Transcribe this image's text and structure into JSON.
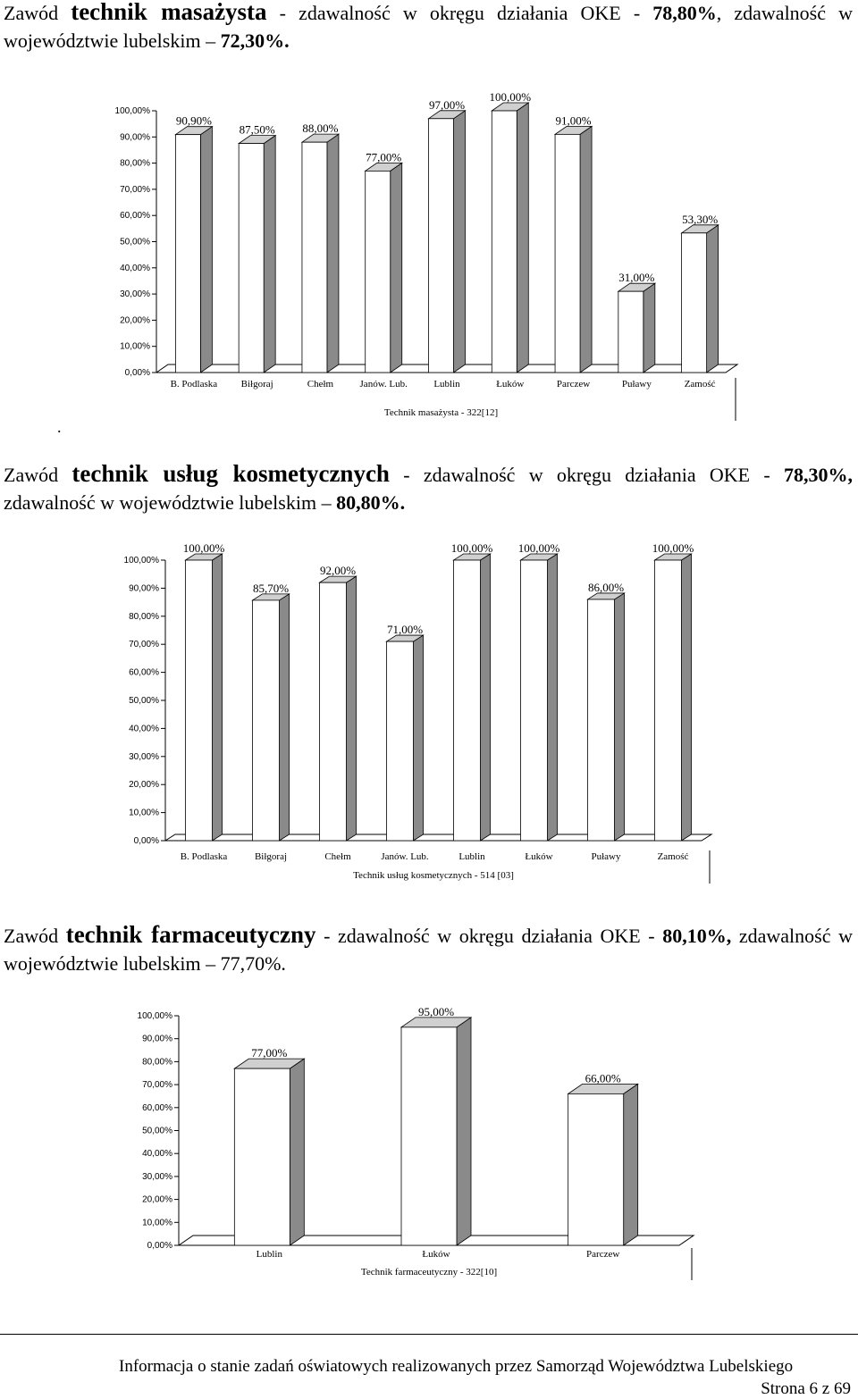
{
  "sections": [
    {
      "heading": [
        {
          "text": "Zawód ",
          "style": "plain"
        },
        {
          "text": "technik masażysta",
          "style": "profession"
        },
        {
          "text": " - zdawalność w okręgu działania OKE - ",
          "style": "plain"
        },
        {
          "text": "78,80%",
          "style": "bold"
        },
        {
          "text": ", zdawalność w województwie lubelskim – ",
          "style": "plain"
        },
        {
          "text": "72,30%.",
          "style": "bold"
        }
      ],
      "note": ".",
      "chart": {
        "type": "bar3d",
        "xlabel": "Technik masażysta - 322[12]",
        "categories": [
          "B. Podlaska",
          "Biłgoraj",
          "Chełm",
          "Janów. Lub.",
          "Lublin",
          "Łuków",
          "Parczew",
          "Puławy",
          "Zamość"
        ],
        "values": [
          90.9,
          87.5,
          88,
          77,
          97,
          100,
          91,
          31,
          53.3
        ],
        "value_labels": [
          "90,90%",
          "87,50%",
          "88,00%",
          "77,00%",
          "97,00%",
          "100,00%",
          "91,00%",
          "31,00%",
          "53,30%"
        ],
        "ylim": [
          0,
          100
        ],
        "yticks": [
          {
            "value": 0,
            "label": "0,00%"
          },
          {
            "value": 10,
            "label": "10,00%"
          },
          {
            "value": 20,
            "label": "20,00%"
          },
          {
            "value": 30,
            "label": "30,00%"
          },
          {
            "value": 40,
            "label": "40,00%"
          },
          {
            "value": 50,
            "label": "50,00%"
          },
          {
            "value": 60,
            "label": "60,00%"
          },
          {
            "value": 70,
            "label": "70,00%"
          },
          {
            "value": 80,
            "label": "80,00%"
          },
          {
            "value": 90,
            "label": "90,00%"
          },
          {
            "value": 100,
            "label": "100,00%"
          }
        ]
      }
    },
    {
      "heading": [
        {
          "text": "Zawód ",
          "style": "plain"
        },
        {
          "text": "technik usług kosmetycznych",
          "style": "profession"
        },
        {
          "text": " - zdawalność w okręgu działania OKE - ",
          "style": "plain"
        },
        {
          "text": "78,30%,",
          "style": "bold"
        },
        {
          "text": " zdawalność w województwie lubelskim – ",
          "style": "plain"
        },
        {
          "text": "80,80%.",
          "style": "bold"
        }
      ],
      "chart": {
        "type": "bar3d",
        "xlabel": "Technik usług kosmetycznych - 514 [03]",
        "categories": [
          "B. Podlaska",
          "Biłgoraj",
          "Chełm",
          "Janów. Lub.",
          "Lublin",
          "Łuków",
          "Puławy",
          "Zamość"
        ],
        "values": [
          100,
          85.7,
          92,
          71,
          100,
          100,
          86,
          100
        ],
        "value_labels": [
          "100,00%",
          "85,70%",
          "92,00%",
          "71,00%",
          "100,00%",
          "100,00%",
          "86,00%",
          "100,00%"
        ],
        "ylim": [
          0,
          100
        ],
        "yticks": [
          {
            "value": 0,
            "label": "0,00%"
          },
          {
            "value": 10,
            "label": "10,00%"
          },
          {
            "value": 20,
            "label": "20,00%"
          },
          {
            "value": 30,
            "label": "30,00%"
          },
          {
            "value": 40,
            "label": "40,00%"
          },
          {
            "value": 50,
            "label": "50,00%"
          },
          {
            "value": 60,
            "label": "60,00%"
          },
          {
            "value": 70,
            "label": "70,00%"
          },
          {
            "value": 80,
            "label": "80,00%"
          },
          {
            "value": 90,
            "label": "90,00%"
          },
          {
            "value": 100,
            "label": "100,00%"
          }
        ]
      }
    },
    {
      "heading": [
        {
          "text": "Zawód ",
          "style": "plain"
        },
        {
          "text": "technik farmaceutyczny",
          "style": "profession"
        },
        {
          "text": " - zdawalność w okręgu działania OKE - ",
          "style": "plain"
        },
        {
          "text": "80,10%,",
          "style": "bold"
        },
        {
          "text": " zdawalność w województwie lubelskim – 77,70%.",
          "style": "plain"
        }
      ],
      "chart": {
        "type": "bar3d",
        "xlabel": "Technik farmaceutyczny - 322[10]",
        "categories": [
          "Lublin",
          "Łuków",
          "Parczew"
        ],
        "values": [
          77,
          95,
          66
        ],
        "value_labels": [
          "77,00%",
          "95,00%",
          "66,00%"
        ],
        "ylim": [
          0,
          100
        ],
        "yticks": [
          {
            "value": 0,
            "label": "0,00%"
          },
          {
            "value": 10,
            "label": "10,00%"
          },
          {
            "value": 20,
            "label": "20,00%"
          },
          {
            "value": 30,
            "label": "30,00%"
          },
          {
            "value": 40,
            "label": "40,00%"
          },
          {
            "value": 50,
            "label": "50,00%"
          },
          {
            "value": 60,
            "label": "60,00%"
          },
          {
            "value": 70,
            "label": "70,00%"
          },
          {
            "value": 80,
            "label": "80,00%"
          },
          {
            "value": 90,
            "label": "90,00%"
          },
          {
            "value": 100,
            "label": "100,00%"
          }
        ]
      }
    }
  ],
  "footer": {
    "text": "Informacja o stanie zadań oświatowych realizowanych przez Samorząd Województwa Lubelskiego",
    "page": "Strona 6 z 69"
  }
}
